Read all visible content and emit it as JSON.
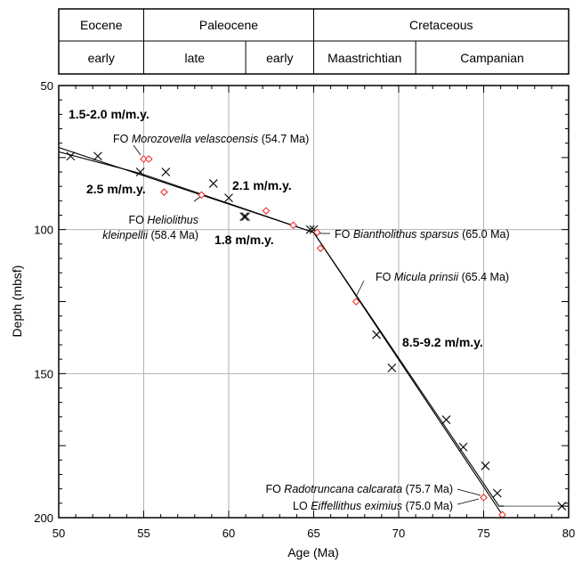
{
  "stratigraphy": {
    "epochs": [
      {
        "name": "Eocene",
        "from": 50,
        "to": 55
      },
      {
        "name": "Paleocene",
        "from": 55,
        "to": 65
      },
      {
        "name": "Cretaceous",
        "from": 65,
        "to": 80
      }
    ],
    "stages": [
      {
        "name": "early",
        "from": 50,
        "to": 55
      },
      {
        "name": "late",
        "from": 55,
        "to": 61
      },
      {
        "name": "early",
        "from": 61,
        "to": 65
      },
      {
        "name": "Maastrichtian",
        "from": 65,
        "to": 71
      },
      {
        "name": "Campanian",
        "from": 71,
        "to": 80
      }
    ]
  },
  "chart_data": {
    "type": "scatter",
    "xlabel": "Age (Ma)",
    "ylabel": "Depth (mbsf)",
    "xlim": [
      50,
      80
    ],
    "ylim": [
      50,
      200
    ],
    "y_inverted": true,
    "grid": true,
    "x_ticks": [
      "50",
      "55",
      "60",
      "65",
      "70",
      "75",
      "80"
    ],
    "y_ticks": [
      "50",
      "100",
      "150",
      "200"
    ],
    "series": [
      {
        "marker": "cross",
        "color": "#000000",
        "points": [
          [
            50.7,
            74.5
          ],
          [
            52.3,
            74.5
          ],
          [
            54.8,
            80
          ],
          [
            56.3,
            80
          ],
          [
            59.1,
            84
          ],
          [
            60,
            89
          ],
          [
            60.9,
            95.5
          ],
          [
            61.0,
            95.5
          ],
          [
            64.8,
            100
          ],
          [
            65.0,
            100
          ],
          [
            68.7,
            136.5
          ],
          [
            69.6,
            148
          ],
          [
            72.8,
            166
          ],
          [
            73.8,
            175.5
          ],
          [
            75.1,
            182
          ],
          [
            75.8,
            191.5
          ],
          [
            79.6,
            196
          ]
        ]
      },
      {
        "marker": "diamond",
        "color": "#e8211f",
        "points": [
          [
            55.0,
            75.5
          ],
          [
            55.3,
            75.5
          ],
          [
            56.2,
            87
          ],
          [
            58.4,
            88
          ],
          [
            62.2,
            93.5
          ],
          [
            63.8,
            98.5
          ],
          [
            65.2,
            101
          ],
          [
            65.4,
            106.5
          ],
          [
            67.5,
            125
          ],
          [
            75.0,
            193
          ],
          [
            76.1,
            199
          ]
        ]
      }
    ],
    "lines": [
      {
        "points": [
          [
            50,
            71.5
          ],
          [
            65,
            101
          ]
        ]
      },
      {
        "points": [
          [
            50,
            73
          ],
          [
            54.8,
            80.5
          ],
          [
            65,
            101
          ],
          [
            75.9,
            196
          ],
          [
            80,
            196
          ]
        ]
      },
      {
        "points": [
          [
            65,
            101
          ],
          [
            76.1,
            199
          ]
        ]
      }
    ],
    "labels": [
      {
        "text": "1.5-2.0 m/m.y.",
        "style": "rate"
      },
      {
        "text": "2.5 m/m.y.",
        "style": "rate"
      },
      {
        "text": "2.1 m/m.y.",
        "style": "rate"
      },
      {
        "text": "1.8 m/m.y.",
        "style": "rate"
      },
      {
        "text": "8.5-9.2 m/m.y.",
        "style": "rate"
      },
      {
        "prefix": "FO ",
        "italic": "Morozovella velascoensis",
        "suffix": " (54.7 Ma)"
      },
      {
        "prefix": "FO ",
        "italic": "Heliolithus",
        "suffix": ""
      },
      {
        "prefix": "",
        "italic": "kleinpellii",
        "suffix": " (58.4 Ma)"
      },
      {
        "prefix": "FO ",
        "italic": "Biantholithus sparsus",
        "suffix": " (65.0 Ma)"
      },
      {
        "prefix": "FO ",
        "italic": "Micula prinsii",
        "suffix": " (65.4 Ma)"
      },
      {
        "prefix": "FO ",
        "italic": "Radotruncana calcarata",
        "suffix": " (75.7 Ma)"
      },
      {
        "prefix": "LO ",
        "italic": "Eiffellithus eximius",
        "suffix": " (75.0 Ma)"
      }
    ]
  }
}
